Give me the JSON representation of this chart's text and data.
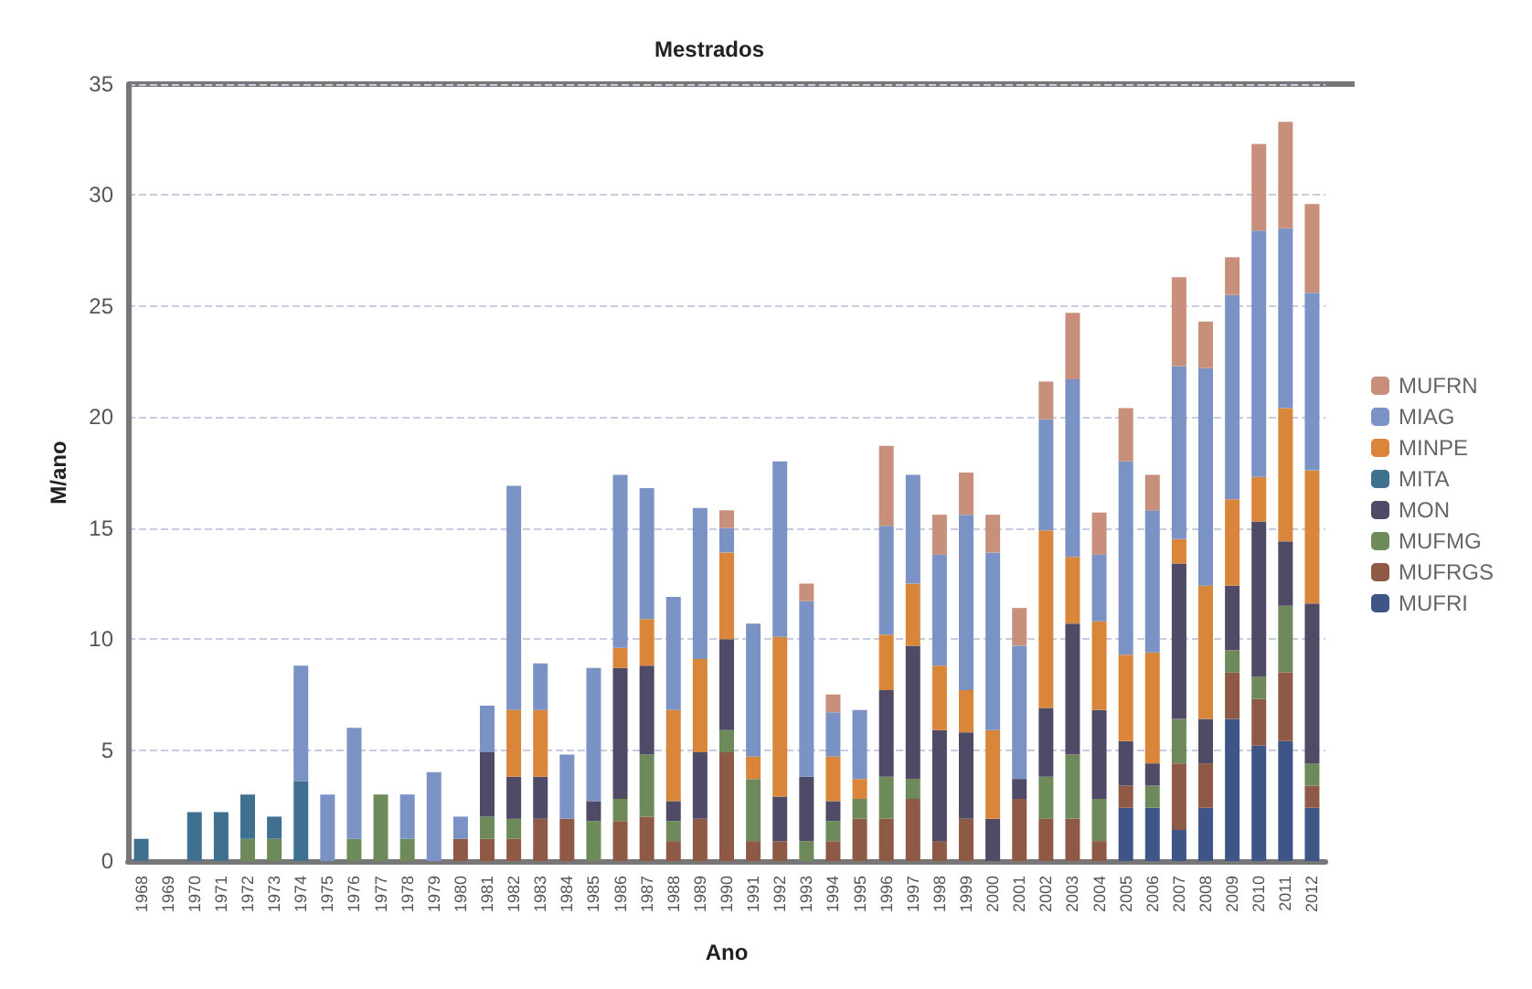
{
  "chart_data": {
    "type": "bar",
    "title": "Mestrados",
    "xlabel": "Ano",
    "ylabel": "M/ano",
    "stacked": true,
    "categories": [
      "1968",
      "1969",
      "1970",
      "1971",
      "1972",
      "1973",
      "1974",
      "1975",
      "1976",
      "1977",
      "1978",
      "1979",
      "1980",
      "1981",
      "1982",
      "1983",
      "1984",
      "1985",
      "1986",
      "1987",
      "1988",
      "1989",
      "1990",
      "1991",
      "1992",
      "1993",
      "1994",
      "1995",
      "1996",
      "1997",
      "1998",
      "1999",
      "2000",
      "2001",
      "2002",
      "2003",
      "2004",
      "2005",
      "2006",
      "2007",
      "2008",
      "2009",
      "2010",
      "2011",
      "2012"
    ],
    "series": [
      {
        "name": "MUFRI",
        "color": "#3e5585",
        "values": [
          0,
          0,
          0,
          0,
          0,
          0,
          0,
          0,
          0,
          0,
          0,
          0,
          0,
          0,
          0,
          0,
          0,
          0,
          0,
          0,
          0,
          0,
          0,
          0,
          0,
          0,
          0,
          0,
          0,
          0,
          0,
          0,
          0,
          0,
          0,
          0,
          0,
          2.4,
          2.4,
          1.4,
          2.4,
          6.4,
          5.2,
          5.4,
          2.4
        ]
      },
      {
        "name": "MUFRGS",
        "color": "#8f5a45",
        "values": [
          0,
          0,
          0,
          0,
          0,
          0,
          0,
          0,
          0,
          0,
          0,
          0,
          1,
          1,
          1,
          1.9,
          1.9,
          0,
          1.8,
          2,
          0.9,
          1.9,
          4.9,
          0.9,
          0.9,
          0,
          0.9,
          1.9,
          1.9,
          2.8,
          0.9,
          1.9,
          0,
          2.8,
          1.9,
          1.9,
          0.9,
          1,
          0,
          3,
          2,
          2.1,
          2.1,
          3.1,
          1
        ]
      },
      {
        "name": "MUFMG",
        "color": "#6f8a5a",
        "values": [
          0,
          0,
          0,
          0,
          1,
          1,
          0,
          0,
          1,
          3,
          1,
          0,
          0,
          1,
          0.9,
          0,
          0,
          1.8,
          1,
          2.8,
          0.9,
          0,
          1,
          2.8,
          0,
          0.9,
          0.9,
          0.9,
          1.9,
          0.9,
          0,
          0,
          0,
          0,
          1.9,
          2.9,
          1.9,
          0,
          1,
          2,
          0,
          1,
          1,
          3,
          1
        ]
      },
      {
        "name": "MON",
        "color": "#4f4a66",
        "values": [
          0,
          0,
          0,
          0,
          0,
          0,
          0,
          0,
          0,
          0,
          0,
          0,
          0,
          2.9,
          1.9,
          1.9,
          0,
          0.9,
          5.9,
          4,
          0.9,
          3,
          4.1,
          0,
          2,
          2.9,
          0.9,
          0,
          3.9,
          6,
          5,
          3.9,
          1.9,
          0.9,
          3.1,
          5.9,
          4,
          2,
          1,
          7,
          2,
          2.9,
          7,
          2.9,
          7.2
        ]
      },
      {
        "name": "MITA",
        "color": "#3f7090",
        "values": [
          1,
          0,
          2.2,
          2.2,
          2,
          1,
          3.6,
          0,
          0,
          0,
          0,
          0,
          0,
          0,
          0,
          0,
          0,
          0,
          0,
          0,
          0,
          0,
          0,
          0,
          0,
          0,
          0,
          0,
          0,
          0,
          0,
          0,
          0,
          0,
          0,
          0,
          0,
          0,
          0,
          0,
          0,
          0,
          0,
          0,
          0
        ]
      },
      {
        "name": "MINPE",
        "color": "#d9863a",
        "values": [
          0,
          0,
          0,
          0,
          0,
          0,
          0,
          0,
          0,
          0,
          0,
          0,
          0,
          0,
          3,
          3,
          0,
          0,
          0.9,
          2.1,
          4.1,
          4.2,
          3.9,
          1,
          7.2,
          0,
          2,
          0.9,
          2.5,
          2.8,
          2.9,
          1.9,
          4,
          0,
          8,
          3,
          4,
          3.9,
          5,
          1.1,
          6,
          3.9,
          2,
          6,
          6
        ]
      },
      {
        "name": "MIAG",
        "color": "#7b93c4",
        "values": [
          0,
          0,
          0,
          0,
          0,
          0,
          5.2,
          3,
          5,
          0,
          2,
          4,
          1,
          2.1,
          10.1,
          2.1,
          2.9,
          6,
          7.8,
          5.9,
          5.1,
          6.8,
          1.1,
          6,
          7.9,
          7.9,
          2,
          3.1,
          4.9,
          4.9,
          5,
          7.9,
          8,
          6,
          5,
          8,
          3,
          8.7,
          6.4,
          7.8,
          9.8,
          9.2,
          11.1,
          8.1,
          8
        ]
      },
      {
        "name": "MUFRN",
        "color": "#c8907a",
        "values": [
          0,
          0,
          0,
          0,
          0,
          0,
          0,
          0,
          0,
          0,
          0,
          0,
          0,
          0,
          0,
          0,
          0,
          0,
          0,
          0,
          0,
          0,
          0.8,
          0,
          0,
          0.8,
          0.8,
          0,
          3.6,
          0,
          1.8,
          1.9,
          1.7,
          1.7,
          1.7,
          3,
          1.9,
          2.4,
          1.6,
          4,
          2.1,
          1.7,
          3.9,
          4.8,
          4
        ]
      }
    ],
    "ylim": [
      0,
      35
    ],
    "yticks": [
      0,
      5,
      10,
      15,
      20,
      25,
      30,
      35
    ],
    "grid": "y",
    "legend": "right"
  }
}
